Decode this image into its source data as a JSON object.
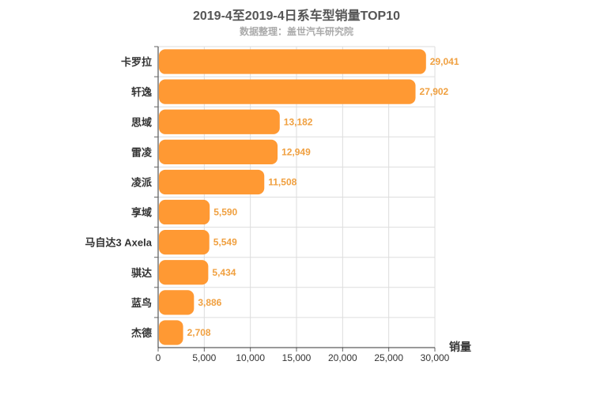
{
  "chart_data": {
    "type": "bar",
    "orientation": "horizontal",
    "title": "2019-4至2019-4日系车型销量TOP10",
    "subtitle": "数据整理：盖世汽车研究院",
    "xlabel": "销量",
    "ylabel": "",
    "xlim": [
      0,
      30000
    ],
    "xticks": [
      "0",
      "5,000",
      "10,000",
      "15,000",
      "20,000",
      "25,000",
      "30,000"
    ],
    "grid": true,
    "categories": [
      "卡罗拉",
      "轩逸",
      "思域",
      "雷凌",
      "凌派",
      "享域",
      "马自达3 Axela",
      "骐达",
      "蓝鸟",
      "杰德"
    ],
    "values": [
      29041,
      27902,
      13182,
      12949,
      11508,
      5590,
      5549,
      5434,
      3886,
      2708
    ],
    "value_labels": [
      "29,041",
      "27,902",
      "13,182",
      "12,949",
      "11,508",
      "5,590",
      "5,549",
      "5,434",
      "3,886",
      "2,708"
    ],
    "bar_color": "#ff9933",
    "label_color": "#f0a040"
  }
}
